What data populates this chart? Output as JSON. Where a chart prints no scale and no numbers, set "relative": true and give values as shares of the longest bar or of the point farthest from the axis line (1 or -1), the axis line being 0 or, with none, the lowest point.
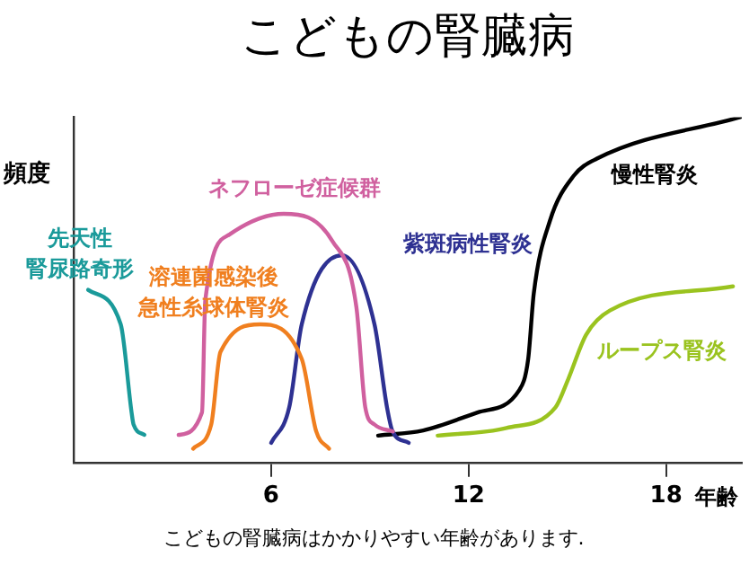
{
  "chart_data": {
    "type": "line",
    "title": "こどもの腎臓病",
    "xlabel": "年齢",
    "ylabel": "頻度",
    "relative": true,
    "xlim": [
      0,
      20.3
    ],
    "xticks": [
      6,
      12,
      18
    ],
    "grid": false,
    "legend": false,
    "marker": "none",
    "line_style": "solid",
    "annotations": [
      "こどもの腎臓病はかかりやすい年齢があります."
    ],
    "series": [
      {
        "name": "先天性腎尿路奇形",
        "color": "#1a9a9a",
        "x": [
          0.44,
          1.43,
          1.76,
          1.82,
          2.15
        ],
        "values": [
          0.5,
          0.4,
          0.145,
          0.11,
          0.08
        ]
      },
      {
        "name": "ネフローゼ症候群",
        "color": "#d0609f",
        "x": [
          3.19,
          3.9,
          4.0,
          4.73,
          6.38,
          7.87,
          8.59,
          8.86,
          9.14,
          9.7
        ],
        "values": [
          0.08,
          0.145,
          0.47,
          0.66,
          0.72,
          0.64,
          0.45,
          0.16,
          0.11,
          0.09
        ]
      },
      {
        "name": "溶連菌感染後急性糸球体腎炎",
        "color": "#f07f1f",
        "x": [
          3.63,
          4.18,
          4.46,
          5.67,
          6.93,
          7.37,
          7.76
        ],
        "values": [
          0.04,
          0.11,
          0.32,
          0.4,
          0.3,
          0.09,
          0.04
        ]
      },
      {
        "name": "紫斑病性腎炎",
        "color": "#2e3192",
        "x": [
          6.0,
          6.55,
          6.93,
          8.15,
          9.14,
          9.52,
          9.69,
          10.18
        ],
        "values": [
          0.057,
          0.16,
          0.4,
          0.6,
          0.4,
          0.16,
          0.09,
          0.057
        ]
      },
      {
        "name": "慢性腎炎",
        "color": "#000000",
        "x": [
          9.25,
          10.62,
          12.27,
          13.54,
          13.81,
          13.98,
          14.47,
          15.19,
          15.9,
          20.25
        ],
        "values": [
          0.078,
          0.093,
          0.145,
          0.21,
          0.3,
          0.49,
          0.7,
          0.83,
          0.88,
          1.0
        ]
      },
      {
        "name": "ループス腎炎",
        "color": "#9ac31f",
        "x": [
          11.06,
          13.15,
          14.64,
          15.02,
          15.57,
          16.29,
          20.03
        ],
        "values": [
          0.078,
          0.1,
          0.16,
          0.24,
          0.37,
          0.44,
          0.51
        ]
      }
    ]
  }
}
